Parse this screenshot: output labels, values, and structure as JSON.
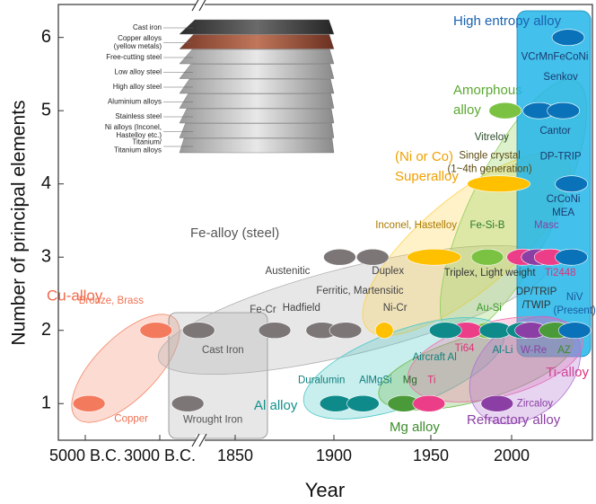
{
  "chart_data": {
    "type": "scatter",
    "x_label": "Year",
    "y_label": "Number of principal elements",
    "xlim": [
      -5700,
      2050
    ],
    "ylim": [
      0.5,
      6.45
    ],
    "xticks": [
      {
        "value": -5000,
        "label": "5000 B.C."
      },
      {
        "value": -3000,
        "label": "3000 B.C."
      },
      1850,
      1900,
      1950,
      2000
    ],
    "yticks": [
      1,
      2,
      3,
      4,
      5,
      6
    ],
    "regions": [
      {
        "name": [
          "Cu-alloy"
        ],
        "color": "#f4876a",
        "text_color": "#ef6a4a"
      },
      {
        "name": [
          "Fe-alloy (steel)"
        ],
        "color": "#b0aeae",
        "text_color": "#555555"
      },
      {
        "name": [
          "(Ni or Co)",
          "Superalloy"
        ],
        "color": "#ffd24a",
        "text_color": "#f0a000"
      },
      {
        "name": [
          "Amorphous",
          "alloy"
        ],
        "color": "#8fd05a",
        "text_color": "#5aa830"
      },
      {
        "name": [
          "High entropy alloy"
        ],
        "color": "#22b5e8",
        "text_color": "#1a62b0"
      },
      {
        "name": [
          "Al alloy"
        ],
        "color": "#4dc8c8",
        "text_color": "#10908c"
      },
      {
        "name": [
          "Mg alloy"
        ],
        "color": "#6cb84a",
        "text_color": "#3c8c2c"
      },
      {
        "name": [
          "Ti-alloy"
        ],
        "color": "#f070a8",
        "text_color": "#e0307a"
      },
      {
        "name": [
          "Refractory alloy"
        ],
        "color": "#b070d0",
        "text_color": "#8b3fa4"
      }
    ],
    "points": [
      {
        "name": [
          "Copper"
        ],
        "x": -4900,
        "y": 1,
        "color": "#f47a5e",
        "text_color": "#f07050"
      },
      {
        "name": [
          "Bronze, Brass"
        ],
        "x": -3100,
        "y": 2,
        "color": "#f47a5e",
        "text_color": "#f07050"
      },
      {
        "name": [
          "Wrought Iron"
        ],
        "x": -1200,
        "y": 1,
        "color": "#7d7676",
        "text_color": "#555555"
      },
      {
        "name": [
          "Cast Iron"
        ],
        "x": -500,
        "y": 2,
        "color": "#7d7676",
        "text_color": "#555555"
      },
      {
        "name": [
          "Fe-Cr"
        ],
        "x": 1870,
        "y": 2,
        "color": "#7d7676",
        "text_color": "#444444"
      },
      {
        "name": [
          "Hadfield"
        ],
        "x": 1894,
        "y": 2,
        "color": "#7d7676",
        "text_color": "#444444"
      },
      {
        "name": [
          "Ferritic, Martensitic"
        ],
        "x": 1906,
        "y": 2,
        "color": "#7d7676",
        "text_color": "#444444"
      },
      {
        "name": [
          "Austenitic"
        ],
        "x": 1903,
        "y": 3,
        "color": "#7d7676",
        "text_color": "#444444"
      },
      {
        "name": [
          "Duplex"
        ],
        "x": 1920,
        "y": 3,
        "color": "#7d7676",
        "text_color": "#444444"
      },
      {
        "name": [
          "Inconel, Hastelloy"
        ],
        "x": 1952,
        "y": 3,
        "color": "#ffc000",
        "text_color": "#a87a00"
      },
      {
        "name": [
          "Ni-Cr"
        ],
        "x": 1926,
        "y": 2,
        "color": "#ffc000",
        "text_color": "#444444"
      },
      {
        "name": [
          "Single crystal",
          "(1~4th generation)"
        ],
        "x": 1992,
        "y": 4,
        "color": "#ffc000",
        "text_color": "#5a4a10"
      },
      {
        "name": [
          "DP-TRIP"
        ],
        "x": 2037,
        "y": 4,
        "color": "#0a72b8",
        "text_color": "#1a3a70"
      },
      {
        "name": [
          "Vitreloy"
        ],
        "x": 1996,
        "y": 5,
        "color": "#7cc242",
        "text_color": "#2a4a2a"
      },
      {
        "name": [
          "Cantor"
        ],
        "x": 2017,
        "y": 5,
        "color": "#0a72b8",
        "text_color": "#1a3a70"
      },
      {
        "name": [
          "Senkov"
        ],
        "x": 2032,
        "y": 5,
        "color": "#0a72b8",
        "text_color": "#1a3a70"
      },
      {
        "name": [
          "VCrMnFeCoNi"
        ],
        "x": 2035,
        "y": 6,
        "color": "#0a72b8",
        "text_color": "#1a3a70"
      },
      {
        "name": [
          "Fe-Si-B"
        ],
        "x": 1985,
        "y": 3,
        "color": "#7cc242",
        "text_color": "#2a7a2a"
      },
      {
        "name": [
          "Triplex, Light weight"
        ],
        "x": 2007,
        "y": 3,
        "color": "#ec3e88",
        "text_color": "#333333"
      },
      {
        "name": [
          "Masc"
        ],
        "x": 2016,
        "y": 3,
        "color": "#8b3fa4",
        "text_color": "#8b3fa4"
      },
      {
        "name": [
          "Ti2448"
        ],
        "x": 2024,
        "y": 3,
        "color": "#ec3e88",
        "text_color": "#e0307a"
      },
      {
        "name": [
          "CrCoNi",
          "MEA"
        ],
        "x": 2037,
        "y": 3,
        "color": "#0a72b8",
        "text_color": "#1a3a70"
      },
      {
        "name": [
          "Au-Si"
        ],
        "x": 1986,
        "y": 2,
        "color": "#7cc242",
        "text_color": "#3a9a2a"
      },
      {
        "name": [
          "Ti64"
        ],
        "x": 1972,
        "y": 2,
        "color": "#ec3e88",
        "text_color": "#e0307a"
      },
      {
        "name": [
          "Al-Li"
        ],
        "x": 1990,
        "y": 2,
        "color": "#0e8a8a",
        "text_color": "#10807c"
      },
      {
        "name": [
          "DP/TRIP",
          "/TWIP"
        ],
        "x": 2007,
        "y": 2,
        "color": "#0e8a8a",
        "text_color": "#333333"
      },
      {
        "name": [
          "W-Re"
        ],
        "x": 2012,
        "y": 2,
        "color": "#8b3fa4",
        "text_color": "#8b3fa4"
      },
      {
        "name": [
          "AZ"
        ],
        "x": 2027,
        "y": 2,
        "color": "#4a9a3a",
        "text_color": "#3c8c2c"
      },
      {
        "name": [
          "NiV",
          "(Present)"
        ],
        "x": 2039,
        "y": 2,
        "color": "#0a72b8",
        "text_color": "#1a5aa0"
      },
      {
        "name": [
          "Aircraft Al"
        ],
        "x": 1959,
        "y": 2,
        "color": "#0e8a8a",
        "text_color": "#10807c"
      },
      {
        "name": [
          "Duralumin"
        ],
        "x": 1901,
        "y": 1,
        "color": "#0e8a8a",
        "text_color": "#10807c"
      },
      {
        "name": [
          "AlMgSi"
        ],
        "x": 1915,
        "y": 1,
        "color": "#0e8a8a",
        "text_color": "#10807c"
      },
      {
        "name": [
          "Mg"
        ],
        "x": 1936,
        "y": 1,
        "color": "#4a9a3a",
        "text_color": "#2a6a2a"
      },
      {
        "name": [
          "Ti"
        ],
        "x": 1949,
        "y": 1,
        "color": "#ec3e88",
        "text_color": "#e0307a"
      },
      {
        "name": [
          "Zircaloy"
        ],
        "x": 1991,
        "y": 1,
        "color": "#8b3fa4",
        "text_color": "#8b3fa4"
      }
    ],
    "inset_labels": [
      [
        "Cast iron"
      ],
      [
        "Copper alloys",
        "(yellow metals)"
      ],
      [
        "Free-cutting steel"
      ],
      [
        "Low alloy steel"
      ],
      [
        "High alloy steel"
      ],
      [
        "Aluminium alloys"
      ],
      [
        "Stainless steel"
      ],
      [
        "Ni alloys (Inconel,",
        "Hastelloy etc.)"
      ],
      [
        "Titanium/",
        "Titanium alloys"
      ]
    ]
  }
}
